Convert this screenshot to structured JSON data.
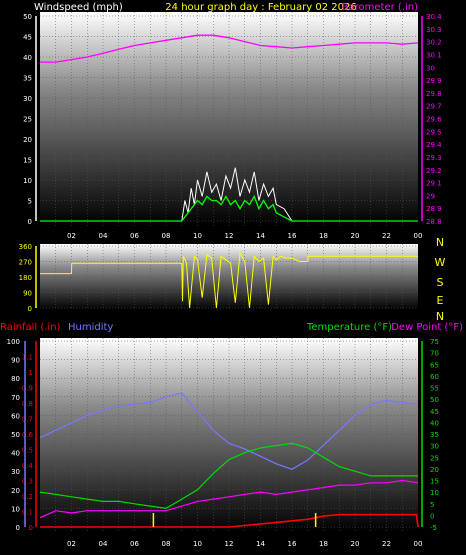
{
  "header": {
    "title_left": "Windspeed (mph)",
    "title_center": "24 hour graph day : February 02 2026",
    "title_right": "Barometer (.in)"
  },
  "colors": {
    "background": "#000000",
    "plot_top": "#ffffff",
    "plot_bottom": "#000000",
    "windspeed_label": "#ffffff",
    "title": "#ffff00",
    "barometer": "#ff00ff",
    "wind_gust": "#ffffff",
    "wind_avg": "#00ff00",
    "direction": "#ffff00",
    "rainfall": "#ff0000",
    "humidity": "#7777ff",
    "temperature": "#00dd00",
    "dewpoint": "#ff00ff",
    "rain_rate_marks": "#ffff00"
  },
  "x_ticks": [
    "02",
    "04",
    "06",
    "08",
    "10",
    "12",
    "14",
    "16",
    "18",
    "20",
    "22",
    "00"
  ],
  "chart_data": [
    {
      "type": "line",
      "title": "24 hour graph day : February 02 2026",
      "ylabel": "Windspeed (mph)",
      "y2label": "Barometer (.in)",
      "ylim": [
        0,
        50
      ],
      "y2lim": [
        28.8,
        30.4
      ],
      "y_ticks": [
        "0",
        "5",
        "10",
        "15",
        "20",
        "25",
        "30",
        "35",
        "40",
        "45",
        "50"
      ],
      "y2_ticks": [
        "28.8",
        "28.9",
        "29",
        "29.1",
        "29.2",
        "29.3",
        "29.4",
        "29.5",
        "29.6",
        "29.7",
        "29.8",
        "29.9",
        "30",
        "30.1",
        "30.2",
        "30.3",
        "30.4"
      ],
      "x_hours": [
        0,
        1,
        2,
        3,
        4,
        5,
        6,
        7,
        8,
        9,
        9.2,
        9.4,
        9.6,
        9.8,
        10,
        10.3,
        10.6,
        10.9,
        11.2,
        11.5,
        11.8,
        12.1,
        12.4,
        12.7,
        13,
        13.3,
        13.6,
        13.9,
        14.2,
        14.5,
        14.8,
        15,
        15.5,
        16,
        17,
        18,
        19,
        20,
        21,
        22,
        23,
        24
      ],
      "series": [
        {
          "name": "Barometer",
          "axis": "right",
          "hours": [
            0,
            1,
            2,
            3,
            4,
            5,
            6,
            7,
            8,
            9,
            10,
            11,
            12,
            13,
            14,
            15,
            16,
            17,
            18,
            19,
            20,
            21,
            22,
            23,
            24
          ],
          "values": [
            30.04,
            30.04,
            30.06,
            30.08,
            30.11,
            30.14,
            30.17,
            30.19,
            30.21,
            30.23,
            30.25,
            30.25,
            30.23,
            30.2,
            30.17,
            30.16,
            30.15,
            30.16,
            30.17,
            30.18,
            30.19,
            30.19,
            30.19,
            30.18,
            30.19
          ]
        },
        {
          "name": "Wind gust",
          "axis": "left",
          "hours": [
            0,
            9,
            9.2,
            9.4,
            9.6,
            9.8,
            10,
            10.3,
            10.6,
            10.9,
            11.2,
            11.5,
            11.8,
            12.1,
            12.4,
            12.7,
            13,
            13.3,
            13.6,
            13.9,
            14.2,
            14.5,
            14.8,
            15,
            15.5,
            16,
            16.5,
            17,
            24
          ],
          "values": [
            0,
            0,
            5,
            2,
            8,
            4,
            10,
            6,
            12,
            7,
            9,
            5,
            11,
            8,
            13,
            6,
            10,
            7,
            12,
            5,
            9,
            6,
            8,
            4,
            3,
            0,
            0,
            0,
            0
          ]
        },
        {
          "name": "Wind average",
          "axis": "left",
          "hours": [
            0,
            9,
            9.2,
            9.4,
            9.6,
            9.8,
            10,
            10.3,
            10.6,
            10.9,
            11.2,
            11.5,
            11.8,
            12.1,
            12.4,
            12.7,
            13,
            13.3,
            13.6,
            13.9,
            14.2,
            14.5,
            14.8,
            15,
            15.5,
            16,
            24
          ],
          "values": [
            0,
            0,
            1,
            2,
            3,
            4,
            5,
            4,
            6,
            5,
            5,
            4,
            6,
            4,
            5,
            3,
            5,
            4,
            6,
            3,
            5,
            3,
            4,
            2,
            1,
            0,
            0
          ]
        }
      ]
    },
    {
      "type": "line",
      "ylabel_ticks": [
        "360",
        "270",
        "180",
        "90",
        "0"
      ],
      "y_right_labels": [
        "N",
        "W",
        "S",
        "E",
        "N"
      ],
      "ylim": [
        0,
        360
      ],
      "series": [
        {
          "name": "Wind direction",
          "hours": [
            0,
            2,
            2.01,
            9,
            9.05,
            9.1,
            9.3,
            9.5,
            9.8,
            10,
            10.3,
            10.6,
            10.9,
            11.2,
            11.5,
            11.8,
            12.1,
            12.4,
            12.7,
            13,
            13.3,
            13.6,
            13.9,
            14.2,
            14.5,
            14.8,
            15,
            15.3,
            15.6,
            16,
            16.5,
            17,
            17.01,
            24
          ],
          "values": [
            200,
            200,
            260,
            260,
            40,
            300,
            260,
            0,
            300,
            280,
            60,
            310,
            290,
            0,
            300,
            280,
            260,
            30,
            320,
            270,
            0,
            300,
            270,
            290,
            20,
            300,
            280,
            300,
            290,
            290,
            270,
            270,
            300,
            300
          ]
        }
      ]
    },
    {
      "type": "line",
      "ylabel_left1": "Rainfall (.in)",
      "ylabel_left2": "Humidity",
      "ylabel_right1": "Temperature (°F)",
      "ylabel_right2": "Dew Point (°F)",
      "humidity_ticks": [
        "0",
        "10",
        "20",
        "30",
        "40",
        "50",
        "60",
        "70",
        "80",
        "90",
        "100"
      ],
      "rain_ticks": [
        "0",
        "0.1",
        "0.2",
        "0.3",
        "0.4",
        "0.5",
        "0.6",
        "0.7",
        "0.8",
        "0.9",
        "1",
        "1.1"
      ],
      "temp_ticks": [
        "-5",
        "0",
        "5",
        "10",
        "15",
        "20",
        "25",
        "30",
        "35",
        "40",
        "45",
        "50",
        "55",
        "60",
        "65",
        "70",
        "75"
      ],
      "humidity_lim": [
        0,
        100
      ],
      "rain_lim": [
        0,
        1.2
      ],
      "temp_lim": [
        -5,
        75
      ],
      "series": [
        {
          "name": "Humidity",
          "axis": "humidity",
          "hours": [
            0,
            1,
            2,
            3,
            4,
            5,
            6,
            7,
            8,
            9,
            10,
            11,
            12,
            13,
            14,
            15,
            16,
            17,
            18,
            19,
            20,
            21,
            22,
            23,
            24
          ],
          "values": [
            48,
            52,
            56,
            60,
            63,
            65,
            66,
            67,
            70,
            72,
            62,
            52,
            45,
            42,
            38,
            34,
            31,
            36,
            44,
            52,
            60,
            66,
            68,
            67,
            66
          ]
        },
        {
          "name": "Temperature",
          "axis": "temp",
          "hours": [
            0,
            1,
            2,
            3,
            4,
            5,
            6,
            7,
            8,
            9,
            10,
            11,
            12,
            13,
            14,
            15,
            16,
            17,
            18,
            19,
            20,
            21,
            22,
            23,
            24
          ],
          "values": [
            10,
            9,
            8,
            7,
            6,
            6,
            5,
            4,
            3,
            7,
            11,
            18,
            24,
            27,
            29,
            30,
            31,
            29,
            25,
            21,
            19,
            17,
            17,
            17,
            17
          ]
        },
        {
          "name": "Dew Point",
          "axis": "temp",
          "hours": [
            0,
            1,
            2,
            3,
            4,
            5,
            6,
            7,
            8,
            9,
            10,
            11,
            12,
            13,
            14,
            15,
            16,
            17,
            18,
            19,
            20,
            21,
            22,
            23,
            24
          ],
          "values": [
            -1,
            2,
            1,
            2,
            2,
            2,
            2,
            2,
            2,
            4,
            6,
            7,
            8,
            9,
            10,
            9,
            10,
            11,
            12,
            13,
            13,
            14,
            14,
            15,
            14
          ]
        },
        {
          "name": "Rainfall",
          "axis": "rain",
          "hours": [
            0,
            1,
            2,
            3,
            4,
            5,
            6,
            7,
            8,
            9,
            10,
            11,
            12,
            13,
            14,
            15,
            16,
            17,
            18,
            19,
            20,
            21,
            22,
            23,
            23.9,
            24
          ],
          "values": [
            0,
            0,
            0,
            0,
            0,
            0,
            0,
            0,
            0,
            0,
            0,
            0,
            0,
            0.01,
            0.02,
            0.03,
            0.04,
            0.05,
            0.07,
            0.08,
            0.08,
            0.08,
            0.08,
            0.08,
            0.08,
            0
          ]
        }
      ],
      "rain_rate_hours": [
        7.2,
        17.5
      ]
    }
  ]
}
